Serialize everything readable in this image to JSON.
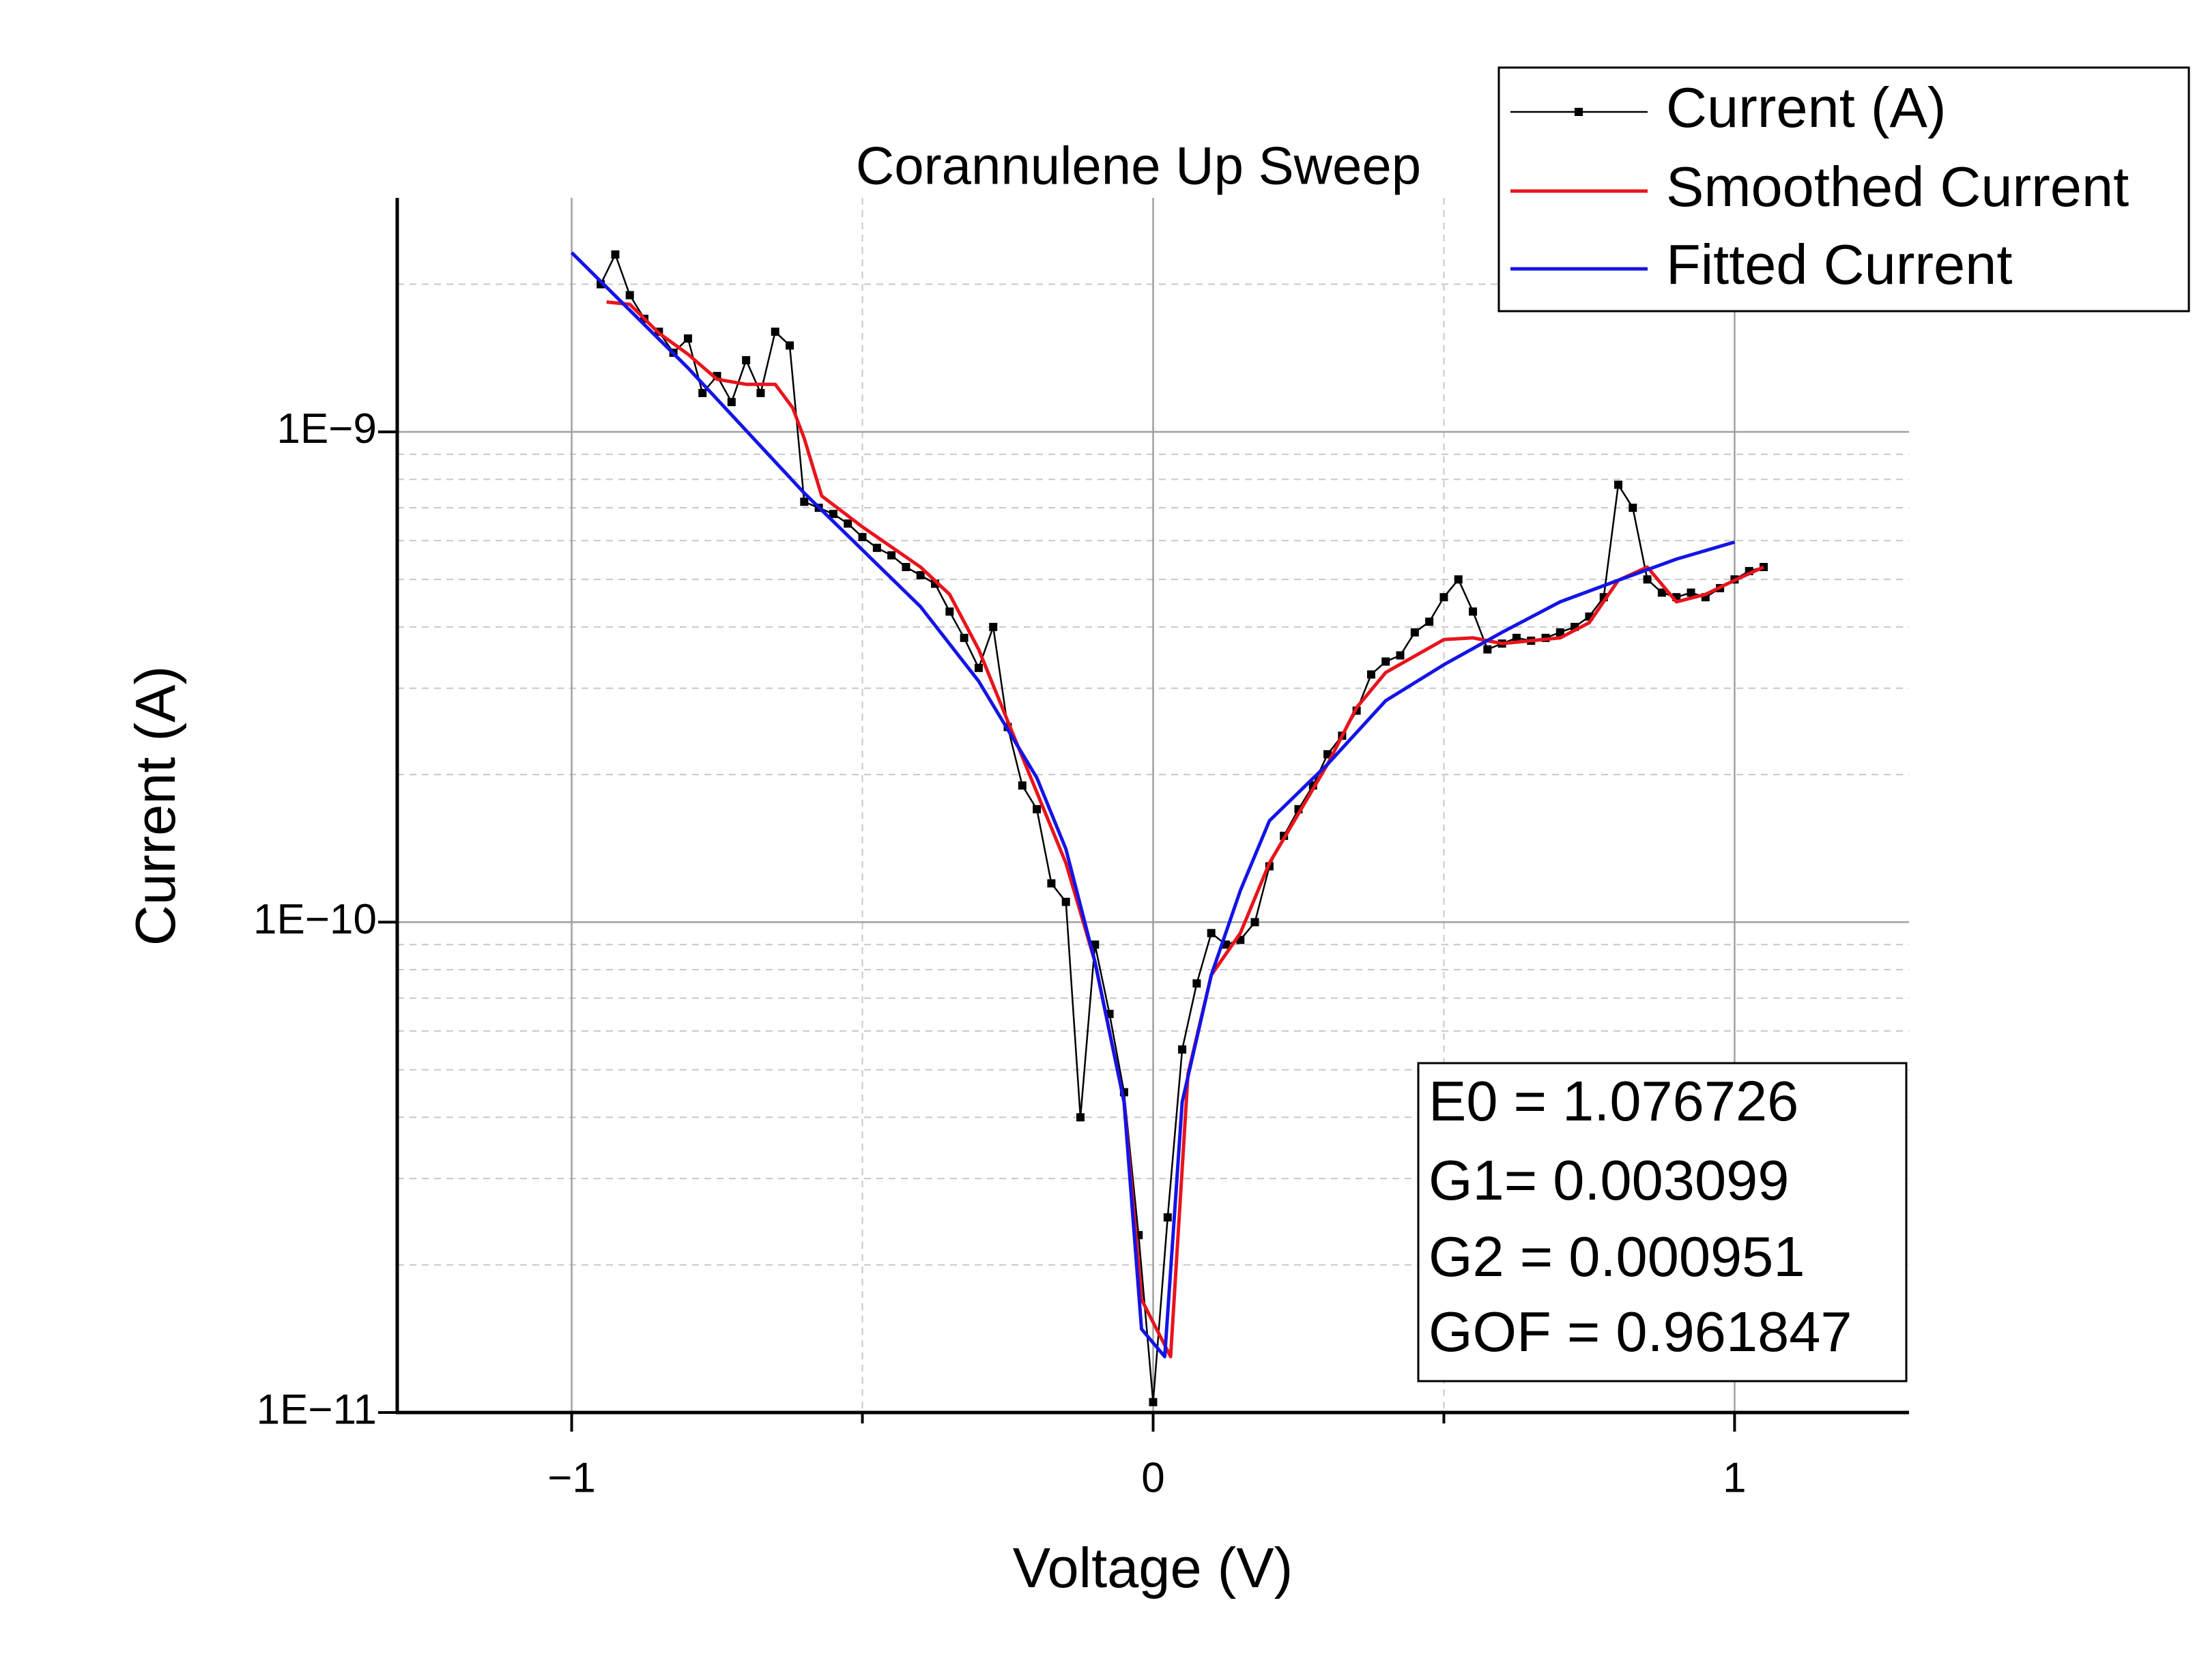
{
  "chart_data": {
    "type": "line",
    "title": "Corannulene Up Sweep",
    "x_label": "Voltage (V)",
    "y_label": "Current (A)",
    "log_y": true,
    "grid": true,
    "legend": "top-right",
    "xlim": [
      -1.3,
      1.3
    ],
    "ylim": [
      1e-11,
      3e-09
    ],
    "xticks": [
      {
        "value": -1,
        "label": "−1"
      },
      0,
      1
    ],
    "xminorticks": [
      -0.5,
      0.5
    ],
    "yticks": [
      {
        "value": 1e-11,
        "label": "1E−11"
      },
      {
        "value": 1e-10,
        "label": "1E−10"
      },
      {
        "value": 1e-09,
        "label": "1E−9"
      }
    ],
    "annotations": [
      "E0 = 1.076726",
      "G1= 0.003099",
      "G2 = 0.000951",
      "GOF = 0.961847"
    ],
    "series": [
      {
        "name": "Current (A)",
        "color": "#000000",
        "markers": true,
        "x": [
          -0.95,
          -0.925,
          -0.9,
          -0.875,
          -0.85,
          -0.825,
          -0.8,
          -0.775,
          -0.75,
          -0.725,
          -0.7,
          -0.675,
          -0.65,
          -0.625,
          -0.6,
          -0.575,
          -0.55,
          -0.525,
          -0.5,
          -0.475,
          -0.45,
          -0.425,
          -0.4,
          -0.375,
          -0.35,
          -0.325,
          -0.3,
          -0.275,
          -0.25,
          -0.225,
          -0.2,
          -0.175,
          -0.15,
          -0.125,
          -0.1,
          -0.075,
          -0.05,
          -0.025,
          0,
          0.025,
          0.05,
          0.075,
          0.1,
          0.125,
          0.15,
          0.175,
          0.2,
          0.225,
          0.25,
          0.275,
          0.3,
          0.325,
          0.35,
          0.375,
          0.4,
          0.425,
          0.45,
          0.475,
          0.5,
          0.525,
          0.55,
          0.575,
          0.6,
          0.625,
          0.65,
          0.675,
          0.7,
          0.725,
          0.75,
          0.775,
          0.8,
          0.825,
          0.85,
          0.875,
          0.9,
          0.925,
          0.95,
          0.975,
          1.0,
          1.025,
          1.05
        ],
        "values": [
          2e-09,
          2.3e-09,
          1.9e-09,
          1.7e-09,
          1.6e-09,
          1.45e-09,
          1.55e-09,
          1.2e-09,
          1.3e-09,
          1.15e-09,
          1.4e-09,
          1.2e-09,
          1.6e-09,
          1.5e-09,
          7.2e-10,
          7e-10,
          6.8e-10,
          6.5e-10,
          6.1e-10,
          5.8e-10,
          5.6e-10,
          5.3e-10,
          5.1e-10,
          4.9e-10,
          4.3e-10,
          3.8e-10,
          3.3e-10,
          4e-10,
          2.5e-10,
          1.9e-10,
          1.7e-10,
          1.2e-10,
          1.1e-10,
          4e-11,
          9e-11,
          6.5e-11,
          4.5e-11,
          2.3e-11,
          1.05e-11,
          2.5e-11,
          5.5e-11,
          7.5e-11,
          9.5e-11,
          9e-11,
          9.2e-11,
          1e-10,
          1.3e-10,
          1.5e-10,
          1.7e-10,
          1.9e-10,
          2.2e-10,
          2.4e-10,
          2.7e-10,
          3.2e-10,
          3.4e-10,
          3.5e-10,
          3.9e-10,
          4.1e-10,
          4.6e-10,
          5e-10,
          4.3e-10,
          3.6e-10,
          3.7e-10,
          3.8e-10,
          3.75e-10,
          3.8e-10,
          3.9e-10,
          4e-10,
          4.2e-10,
          4.6e-10,
          7.8e-10,
          7e-10,
          5e-10,
          4.7e-10,
          4.6e-10,
          4.7e-10,
          4.6e-10,
          4.8e-10,
          5e-10,
          5.2e-10,
          5.3e-10
        ]
      },
      {
        "name": "Smoothed Current",
        "color": "#e8141c",
        "markers": false,
        "x": [
          -0.94,
          -0.9,
          -0.85,
          -0.8,
          -0.75,
          -0.7,
          -0.65,
          -0.62,
          -0.6,
          -0.57,
          -0.5,
          -0.4,
          -0.35,
          -0.3,
          -0.25,
          -0.2,
          -0.15,
          -0.1,
          -0.05,
          -0.02,
          0.03,
          0.06,
          0.1,
          0.15,
          0.2,
          0.3,
          0.35,
          0.4,
          0.5,
          0.55,
          0.6,
          0.7,
          0.75,
          0.8,
          0.85,
          0.9,
          0.95,
          1.0,
          1.05
        ],
        "values": [
          1.84e-09,
          1.82e-09,
          1.59e-09,
          1.44e-09,
          1.28e-09,
          1.25e-09,
          1.25e-09,
          1.12e-09,
          9.7e-10,
          7.4e-10,
          6.4e-10,
          5.3e-10,
          4.66e-10,
          3.6e-10,
          2.57e-10,
          1.84e-10,
          1.32e-10,
          8.3e-11,
          4.3e-11,
          1.7e-11,
          1.3e-11,
          4.9e-11,
          7.8e-11,
          9.5e-11,
          1.32e-10,
          2.1e-10,
          2.74e-10,
          3.23e-10,
          3.77e-10,
          3.8e-10,
          3.7e-10,
          3.8e-10,
          4.08e-10,
          4.98e-10,
          5.3e-10,
          4.5e-10,
          4.66e-10,
          4.98e-10,
          5.3e-10
        ]
      },
      {
        "name": "Fitted Current",
        "color": "#1414e6",
        "markers": false,
        "x": [
          -1,
          -0.8,
          -0.6,
          -0.4,
          -0.3,
          -0.2,
          -0.15,
          -0.1,
          -0.05,
          -0.02,
          0.02,
          0.05,
          0.1,
          0.15,
          0.2,
          0.3,
          0.4,
          0.5,
          0.6,
          0.7,
          0.8,
          0.9,
          1.0
        ],
        "values": [
          2.32e-09,
          1.35e-09,
          7.5e-10,
          4.4e-10,
          3.1e-10,
          1.97e-10,
          1.41e-10,
          8.3e-11,
          4.3e-11,
          1.48e-11,
          1.3e-11,
          4.3e-11,
          7.8e-11,
          1.16e-10,
          1.61e-10,
          2.1e-10,
          2.83e-10,
          3.35e-10,
          3.9e-10,
          4.5e-10,
          4.98e-10,
          5.5e-10,
          5.96e-10
        ]
      }
    ]
  }
}
